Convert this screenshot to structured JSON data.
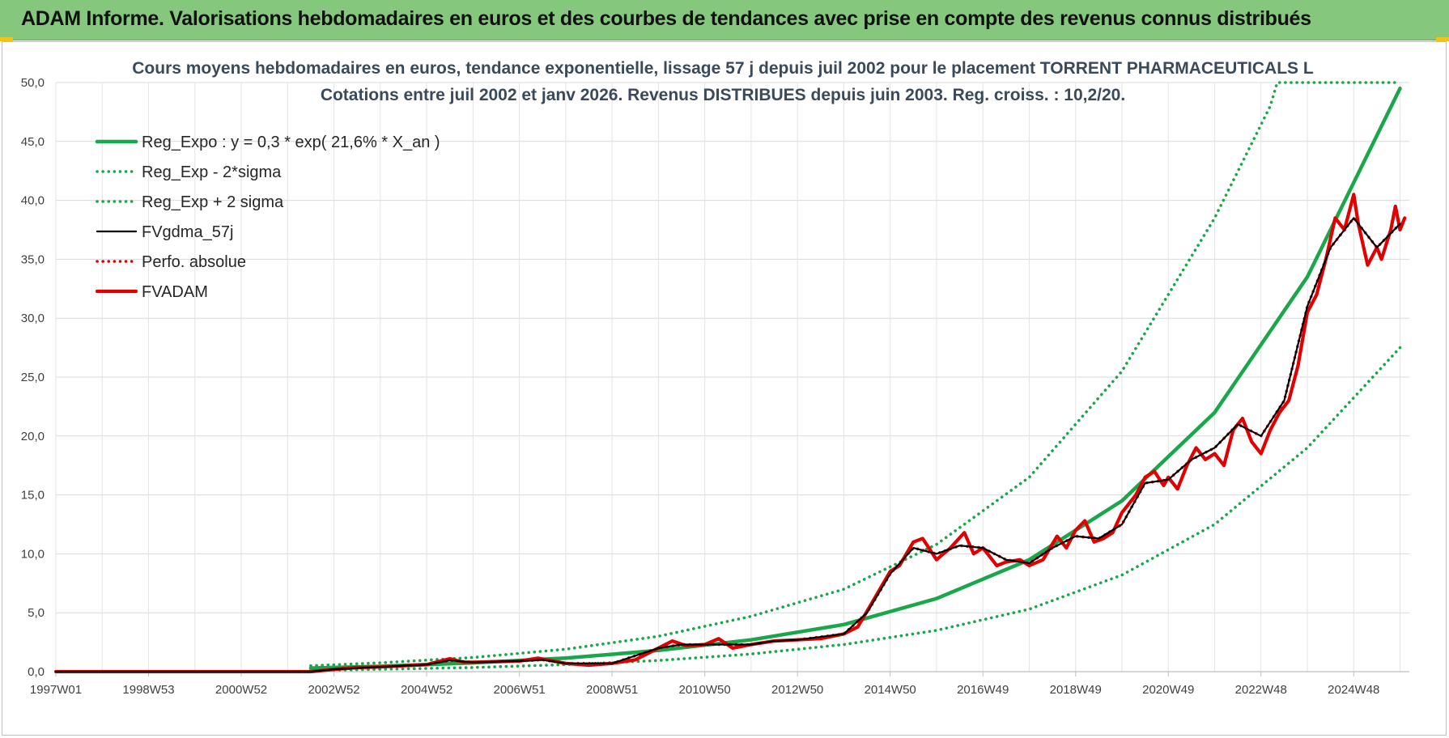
{
  "banner": {
    "title": "ADAM Informe. Valorisations hebdomadaires en euros et des courbes de tendances avec prise en compte des revenus connus distribués"
  },
  "chart_data": {
    "type": "line",
    "title_lines": [
      "Cours moyens hebdomadaires en euros, tendance exponentielle, lissage 57 j depuis juil 2002 pour le placement TORRENT PHARMACEUTICALS L",
      "Cotations entre juil 2002 et janv 2026. Revenus DISTRIBUES depuis juin 2003. Reg. croiss. : 10,2/20."
    ],
    "xlabel": "",
    "ylabel": "",
    "ylim": [
      0,
      50
    ],
    "yticks": [
      "0,0",
      "5,0",
      "10,0",
      "15,0",
      "20,0",
      "25,0",
      "30,0",
      "35,0",
      "40,0",
      "45,0",
      "50,0"
    ],
    "xticks": [
      {
        "label": "1997W01",
        "year": 1997.0
      },
      {
        "label": "1998W53",
        "year": 1999.0
      },
      {
        "label": "2000W52",
        "year": 2001.0
      },
      {
        "label": "2002W52",
        "year": 2003.0
      },
      {
        "label": "2004W52",
        "year": 2005.0
      },
      {
        "label": "2006W51",
        "year": 2007.0
      },
      {
        "label": "2008W51",
        "year": 2009.0
      },
      {
        "label": "2010W50",
        "year": 2011.0
      },
      {
        "label": "2012W50",
        "year": 2013.0
      },
      {
        "label": "2014W50",
        "year": 2015.0
      },
      {
        "label": "2016W49",
        "year": 2017.0
      },
      {
        "label": "2018W49",
        "year": 2019.0
      },
      {
        "label": "2020W49",
        "year": 2021.0
      },
      {
        "label": "2022W48",
        "year": 2023.0
      },
      {
        "label": "2024W48",
        "year": 2025.0
      }
    ],
    "xlim": [
      1997.0,
      2026.2
    ],
    "grid": true,
    "legend_position": "top-left",
    "series": [
      {
        "name": "Reg_Expo : y = 0,3 * exp( 21,6% *  X_an )",
        "color": "#1aa64a",
        "style": "solid",
        "points": [
          [
            2002.5,
            0.3
          ],
          [
            2004,
            0.45
          ],
          [
            2006,
            0.75
          ],
          [
            2008,
            1.15
          ],
          [
            2010,
            1.8
          ],
          [
            2012,
            2.7
          ],
          [
            2014,
            4.0
          ],
          [
            2016,
            6.2
          ],
          [
            2018,
            9.5
          ],
          [
            2020,
            14.5
          ],
          [
            2022,
            22.0
          ],
          [
            2024,
            33.5
          ],
          [
            2026,
            49.5
          ]
        ]
      },
      {
        "name": "Reg_Exp - 2*sigma",
        "color": "#1aa64a",
        "style": "dotted",
        "points": [
          [
            2002.5,
            0.1
          ],
          [
            2004,
            0.2
          ],
          [
            2006,
            0.35
          ],
          [
            2008,
            0.6
          ],
          [
            2010,
            0.95
          ],
          [
            2012,
            1.5
          ],
          [
            2014,
            2.3
          ],
          [
            2016,
            3.5
          ],
          [
            2018,
            5.3
          ],
          [
            2020,
            8.2
          ],
          [
            2022,
            12.5
          ],
          [
            2024,
            19.0
          ],
          [
            2026,
            27.5
          ]
        ]
      },
      {
        "name": "Reg_Exp + 2 sigma",
        "color": "#1aa64a",
        "style": "dotted",
        "points": [
          [
            2002.5,
            0.5
          ],
          [
            2004,
            0.75
          ],
          [
            2006,
            1.2
          ],
          [
            2008,
            1.9
          ],
          [
            2010,
            3.0
          ],
          [
            2012,
            4.7
          ],
          [
            2014,
            7.0
          ],
          [
            2016,
            10.8
          ],
          [
            2018,
            16.5
          ],
          [
            2020,
            25.5
          ],
          [
            2022,
            38.5
          ],
          [
            2023.2,
            48.0
          ],
          [
            2023.35,
            50.0
          ],
          [
            2026,
            50.0
          ]
        ]
      },
      {
        "name": "FVgdma_57j",
        "color": "#000000",
        "style": "solid",
        "points": [
          [
            1997.0,
            0
          ],
          [
            2002.5,
            0
          ],
          [
            2003,
            0.2
          ],
          [
            2004,
            0.4
          ],
          [
            2005,
            0.6
          ],
          [
            2005.5,
            0.95
          ],
          [
            2006,
            0.8
          ],
          [
            2007,
            0.9
          ],
          [
            2007.5,
            1.0
          ],
          [
            2008,
            0.7
          ],
          [
            2009,
            0.7
          ],
          [
            2010,
            2.0
          ],
          [
            2010.5,
            2.3
          ],
          [
            2011,
            2.3
          ],
          [
            2012,
            2.3
          ],
          [
            2012.5,
            2.6
          ],
          [
            2013,
            2.7
          ],
          [
            2014,
            3.2
          ],
          [
            2014.5,
            5.0
          ],
          [
            2015,
            8.3
          ],
          [
            2015.5,
            10.5
          ],
          [
            2016,
            10.0
          ],
          [
            2016.5,
            10.7
          ],
          [
            2017,
            10.5
          ],
          [
            2017.5,
            9.5
          ],
          [
            2018,
            9.2
          ],
          [
            2018.5,
            10.5
          ],
          [
            2019,
            11.5
          ],
          [
            2019.5,
            11.3
          ],
          [
            2020,
            12.5
          ],
          [
            2020.5,
            16.0
          ],
          [
            2021,
            16.3
          ],
          [
            2021.5,
            18.0
          ],
          [
            2022,
            19.0
          ],
          [
            2022.5,
            21.0
          ],
          [
            2023,
            20.0
          ],
          [
            2023.5,
            23.0
          ],
          [
            2024,
            31.0
          ],
          [
            2024.5,
            36.0
          ],
          [
            2025,
            38.5
          ],
          [
            2025.5,
            36.0
          ],
          [
            2026.0,
            38.0
          ]
        ]
      },
      {
        "name": "Perfo. absolue",
        "color": "#e10000",
        "style": "dotted",
        "points": [
          [
            1997.0,
            0
          ],
          [
            2002.5,
            0
          ],
          [
            2003,
            0.2
          ],
          [
            2004,
            0.4
          ],
          [
            2005,
            0.6
          ],
          [
            2005.5,
            0.95
          ],
          [
            2006,
            0.8
          ],
          [
            2007,
            0.9
          ],
          [
            2007.5,
            1.0
          ],
          [
            2008,
            0.7
          ],
          [
            2009,
            0.7
          ],
          [
            2010,
            2.0
          ],
          [
            2010.5,
            2.3
          ],
          [
            2011,
            2.3
          ],
          [
            2012,
            2.3
          ],
          [
            2012.5,
            2.6
          ],
          [
            2013,
            2.7
          ],
          [
            2014,
            3.2
          ],
          [
            2014.5,
            5.0
          ],
          [
            2015,
            8.3
          ],
          [
            2015.5,
            10.5
          ],
          [
            2016,
            10.0
          ],
          [
            2016.5,
            10.7
          ],
          [
            2017,
            10.5
          ],
          [
            2017.5,
            9.5
          ],
          [
            2018,
            9.2
          ],
          [
            2018.5,
            10.5
          ],
          [
            2019,
            11.5
          ],
          [
            2019.5,
            11.3
          ],
          [
            2020,
            12.5
          ],
          [
            2020.5,
            16.0
          ],
          [
            2021,
            16.3
          ],
          [
            2021.5,
            18.0
          ],
          [
            2022,
            19.0
          ],
          [
            2022.5,
            21.0
          ],
          [
            2023,
            20.0
          ],
          [
            2023.5,
            23.0
          ],
          [
            2024,
            31.0
          ],
          [
            2024.5,
            36.0
          ],
          [
            2025,
            38.5
          ],
          [
            2025.5,
            36.0
          ],
          [
            2026.0,
            38.0
          ]
        ]
      },
      {
        "name": "FVADAM",
        "color": "#e10000",
        "style": "solid",
        "points": [
          [
            1997.0,
            0
          ],
          [
            2002.5,
            0
          ],
          [
            2003,
            0.2
          ],
          [
            2003.5,
            0.35
          ],
          [
            2004,
            0.4
          ],
          [
            2004.5,
            0.5
          ],
          [
            2005,
            0.6
          ],
          [
            2005.3,
            0.9
          ],
          [
            2005.5,
            1.1
          ],
          [
            2005.8,
            0.8
          ],
          [
            2006,
            0.8
          ],
          [
            2006.5,
            0.85
          ],
          [
            2007,
            0.9
          ],
          [
            2007.4,
            1.15
          ],
          [
            2007.6,
            1.0
          ],
          [
            2008,
            0.7
          ],
          [
            2008.5,
            0.55
          ],
          [
            2009,
            0.7
          ],
          [
            2009.5,
            1.0
          ],
          [
            2010,
            2.0
          ],
          [
            2010.3,
            2.6
          ],
          [
            2010.6,
            2.2
          ],
          [
            2011,
            2.3
          ],
          [
            2011.3,
            2.8
          ],
          [
            2011.6,
            2.0
          ],
          [
            2012,
            2.3
          ],
          [
            2012.5,
            2.6
          ],
          [
            2013,
            2.7
          ],
          [
            2013.5,
            2.8
          ],
          [
            2014,
            3.2
          ],
          [
            2014.3,
            3.8
          ],
          [
            2014.6,
            5.8
          ],
          [
            2015,
            8.5
          ],
          [
            2015.2,
            9.0
          ],
          [
            2015.5,
            11.0
          ],
          [
            2015.7,
            11.3
          ],
          [
            2016,
            9.5
          ],
          [
            2016.3,
            10.5
          ],
          [
            2016.6,
            11.8
          ],
          [
            2016.8,
            10.0
          ],
          [
            2017,
            10.5
          ],
          [
            2017.3,
            9.0
          ],
          [
            2017.5,
            9.3
          ],
          [
            2017.8,
            9.5
          ],
          [
            2018,
            9.0
          ],
          [
            2018.3,
            9.5
          ],
          [
            2018.6,
            11.5
          ],
          [
            2018.8,
            10.5
          ],
          [
            2019,
            12.0
          ],
          [
            2019.2,
            12.8
          ],
          [
            2019.4,
            11.0
          ],
          [
            2019.6,
            11.3
          ],
          [
            2019.8,
            11.8
          ],
          [
            2020,
            13.5
          ],
          [
            2020.3,
            15.0
          ],
          [
            2020.5,
            16.5
          ],
          [
            2020.7,
            17.0
          ],
          [
            2020.9,
            15.8
          ],
          [
            2021,
            16.5
          ],
          [
            2021.2,
            15.5
          ],
          [
            2021.4,
            17.5
          ],
          [
            2021.6,
            19.0
          ],
          [
            2021.8,
            18.0
          ],
          [
            2022,
            18.5
          ],
          [
            2022.2,
            17.5
          ],
          [
            2022.4,
            20.5
          ],
          [
            2022.6,
            21.5
          ],
          [
            2022.8,
            19.5
          ],
          [
            2023,
            18.5
          ],
          [
            2023.2,
            20.5
          ],
          [
            2023.4,
            22.0
          ],
          [
            2023.6,
            23.0
          ],
          [
            2023.8,
            26.0
          ],
          [
            2024,
            30.5
          ],
          [
            2024.2,
            32.0
          ],
          [
            2024.4,
            35.0
          ],
          [
            2024.6,
            38.5
          ],
          [
            2024.8,
            37.5
          ],
          [
            2025,
            40.5
          ],
          [
            2025.1,
            38.0
          ],
          [
            2025.3,
            34.5
          ],
          [
            2025.5,
            36.0
          ],
          [
            2025.6,
            35.0
          ],
          [
            2025.8,
            37.5
          ],
          [
            2025.9,
            39.5
          ],
          [
            2026.0,
            37.5
          ],
          [
            2026.1,
            38.5
          ]
        ]
      }
    ]
  }
}
